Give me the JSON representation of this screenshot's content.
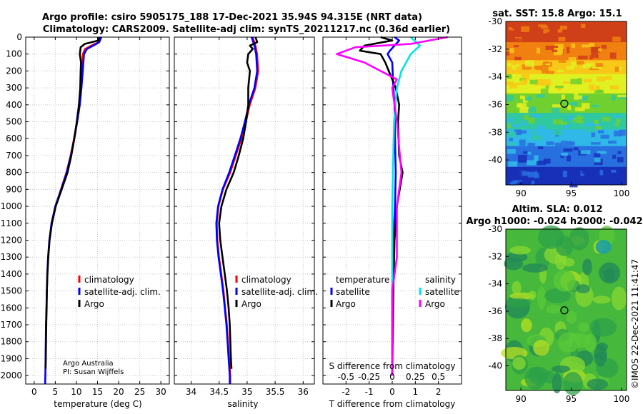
{
  "title": {
    "line1": "Argo profile: csiro 5905175_188 17-Dec-2021 35.94S 94.315E (NRT data)",
    "line2": "Climatology: CARS2009. Satellite-adj clim: synTS_20211217.nc (0.36d earlier)"
  },
  "colors": {
    "climatology": "#ff0000",
    "satellite": "#0000ff",
    "argo": "#000000",
    "s_satellite": "#00e5e5",
    "s_argo": "#ff00ff"
  },
  "depth_axis": {
    "ticks": [
      "0",
      "100",
      "200",
      "300",
      "400",
      "500",
      "600",
      "700",
      "800",
      "900",
      "1000",
      "1100",
      "1200",
      "1300",
      "1400",
      "1500",
      "1600",
      "1700",
      "1800",
      "1900",
      "2000"
    ]
  },
  "chart_data": [
    {
      "type": "line",
      "xlabel": "temperature (deg C)",
      "xlim": [
        -2,
        32
      ],
      "ylim": [
        0,
        2050
      ],
      "xticks": [
        "0",
        "5",
        "10",
        "15",
        "20",
        "25",
        "30"
      ],
      "legend": {
        "placement": "middle-right",
        "items": [
          "climatology",
          "satellite-adj. clim.",
          "Argo"
        ]
      },
      "annotation": {
        "line1": "Argo Australia",
        "line2": "PI: Susan Wijffels"
      },
      "series": [
        {
          "name": "climatology",
          "points": [
            [
              15.8,
              0
            ],
            [
              15.2,
              30
            ],
            [
              13.5,
              50
            ],
            [
              12,
              70
            ],
            [
              11.5,
              100
            ],
            [
              11.3,
              200
            ],
            [
              11,
              300
            ],
            [
              10.7,
              400
            ],
            [
              10.1,
              500
            ],
            [
              9.4,
              600
            ],
            [
              8.6,
              700
            ],
            [
              7.6,
              800
            ],
            [
              6.3,
              900
            ],
            [
              5,
              1000
            ],
            [
              4.1,
              1100
            ],
            [
              3.6,
              1200
            ],
            [
              3.3,
              1300
            ],
            [
              3.1,
              1400
            ],
            [
              3,
              1500
            ],
            [
              2.9,
              1600
            ],
            [
              2.8,
              1700
            ],
            [
              2.75,
              1800
            ],
            [
              2.7,
              1900
            ],
            [
              2.65,
              2000
            ],
            [
              2.6,
              2050
            ]
          ]
        },
        {
          "name": "satellite-adj. clim.",
          "points": [
            [
              15.9,
              0
            ],
            [
              15.4,
              30
            ],
            [
              14,
              50
            ],
            [
              12.5,
              70
            ],
            [
              11.8,
              100
            ],
            [
              11.5,
              200
            ],
            [
              11.2,
              300
            ],
            [
              10.8,
              400
            ],
            [
              10.2,
              500
            ],
            [
              9.5,
              600
            ],
            [
              8.7,
              700
            ],
            [
              7.7,
              800
            ],
            [
              6.4,
              900
            ],
            [
              5,
              1000
            ],
            [
              4.1,
              1100
            ],
            [
              3.6,
              1200
            ],
            [
              3.3,
              1300
            ],
            [
              3.1,
              1400
            ],
            [
              3,
              1500
            ],
            [
              2.9,
              1600
            ],
            [
              2.8,
              1700
            ],
            [
              2.75,
              1800
            ],
            [
              2.7,
              1900
            ],
            [
              2.65,
              2000
            ],
            [
              2.6,
              2050
            ]
          ]
        },
        {
          "name": "Argo",
          "points": [
            [
              15.4,
              0
            ],
            [
              15.2,
              20
            ],
            [
              12,
              40
            ],
            [
              11,
              60
            ],
            [
              10.8,
              100
            ],
            [
              11.1,
              150
            ],
            [
              11,
              200
            ],
            [
              10.9,
              300
            ],
            [
              10.6,
              400
            ],
            [
              10.1,
              500
            ],
            [
              9.5,
              600
            ],
            [
              8.8,
              700
            ],
            [
              7.9,
              800
            ],
            [
              6.5,
              900
            ],
            [
              5.1,
              1000
            ],
            [
              4.2,
              1100
            ],
            [
              3.65,
              1200
            ],
            [
              3.35,
              1300
            ],
            [
              3.15,
              1400
            ],
            [
              3,
              1500
            ],
            [
              2.95,
              1600
            ],
            [
              2.85,
              1700
            ],
            [
              2.8,
              1800
            ],
            [
              2.75,
              1900
            ],
            [
              2.7,
              1960
            ]
          ]
        }
      ]
    },
    {
      "type": "line",
      "xlabel": "salinity",
      "xlim": [
        33.7,
        36.2
      ],
      "ylim": [
        0,
        2050
      ],
      "xticks": [
        "34",
        "34.5",
        "35",
        "35.5",
        "36"
      ],
      "legend": {
        "placement": "middle-right",
        "items": [
          "climatology",
          "satellite-adj. clim.",
          "Argo"
        ]
      },
      "series": [
        {
          "name": "climatology",
          "points": [
            [
              35.1,
              0
            ],
            [
              35.15,
              50
            ],
            [
              35.18,
              100
            ],
            [
              35.2,
              200
            ],
            [
              35.15,
              300
            ],
            [
              35.05,
              400
            ],
            [
              34.98,
              500
            ],
            [
              34.9,
              600
            ],
            [
              34.8,
              700
            ],
            [
              34.7,
              800
            ],
            [
              34.57,
              900
            ],
            [
              34.49,
              1000
            ],
            [
              34.46,
              1100
            ],
            [
              34.47,
              1200
            ],
            [
              34.5,
              1300
            ],
            [
              34.54,
              1400
            ],
            [
              34.58,
              1500
            ],
            [
              34.61,
              1600
            ],
            [
              34.64,
              1700
            ],
            [
              34.66,
              1800
            ],
            [
              34.68,
              1900
            ],
            [
              34.7,
              2000
            ],
            [
              34.7,
              2050
            ]
          ]
        },
        {
          "name": "satellite-adj. clim.",
          "points": [
            [
              35.08,
              0
            ],
            [
              35.13,
              50
            ],
            [
              35.16,
              100
            ],
            [
              35.18,
              200
            ],
            [
              35.13,
              300
            ],
            [
              35.03,
              400
            ],
            [
              34.96,
              500
            ],
            [
              34.88,
              600
            ],
            [
              34.78,
              700
            ],
            [
              34.68,
              800
            ],
            [
              34.56,
              900
            ],
            [
              34.48,
              1000
            ],
            [
              34.45,
              1100
            ],
            [
              34.46,
              1200
            ],
            [
              34.49,
              1300
            ],
            [
              34.53,
              1400
            ],
            [
              34.57,
              1500
            ],
            [
              34.6,
              1600
            ],
            [
              34.63,
              1700
            ],
            [
              34.65,
              1800
            ],
            [
              34.67,
              1900
            ],
            [
              34.69,
              2000
            ],
            [
              34.69,
              2050
            ]
          ]
        },
        {
          "name": "Argo",
          "points": [
            [
              35.15,
              0
            ],
            [
              35.18,
              30
            ],
            [
              35.05,
              50
            ],
            [
              35.1,
              70
            ],
            [
              35.02,
              100
            ],
            [
              35,
              150
            ],
            [
              35.05,
              200
            ],
            [
              35.02,
              300
            ],
            [
              35.02,
              400
            ],
            [
              34.98,
              500
            ],
            [
              34.93,
              600
            ],
            [
              34.85,
              700
            ],
            [
              34.76,
              800
            ],
            [
              34.63,
              900
            ],
            [
              34.54,
              1000
            ],
            [
              34.5,
              1100
            ],
            [
              34.52,
              1200
            ],
            [
              34.56,
              1300
            ],
            [
              34.6,
              1400
            ],
            [
              34.64,
              1500
            ],
            [
              34.67,
              1600
            ],
            [
              34.69,
              1700
            ],
            [
              34.7,
              1800
            ],
            [
              34.71,
              1900
            ],
            [
              34.72,
              1960
            ]
          ]
        }
      ]
    },
    {
      "type": "line",
      "xlabel": "T difference from climatology",
      "xlabel_top": "S difference from climatology",
      "xlim": [
        -3,
        3
      ],
      "ylim": [
        0,
        2050
      ],
      "xticks": [
        "-2",
        "-1",
        "0",
        "1",
        "2"
      ],
      "xticks_top": [
        "-0.5",
        "-0.25",
        "0",
        "0.25",
        "0.5"
      ],
      "legend_left": {
        "title": "temperature",
        "items": [
          "satellite",
          "Argo"
        ]
      },
      "legend_right": {
        "title": "salinity",
        "items": [
          "satellite",
          "Argo"
        ]
      },
      "series": [
        {
          "name": "T satellite",
          "points": [
            [
              0.1,
              0
            ],
            [
              0.3,
              20
            ],
            [
              -0.1,
              80
            ],
            [
              -0.2,
              100
            ],
            [
              0,
              150
            ],
            [
              0.05,
              300
            ],
            [
              0.1,
              400
            ],
            [
              0.12,
              600
            ],
            [
              0.15,
              800
            ],
            [
              0.12,
              1000
            ],
            [
              0.05,
              1200
            ],
            [
              0,
              1500
            ],
            [
              0,
              2000
            ]
          ]
        },
        {
          "name": "T Argo",
          "points": [
            [
              -0.5,
              0
            ],
            [
              0,
              20
            ],
            [
              -1.2,
              50
            ],
            [
              -1.4,
              80
            ],
            [
              -0.5,
              100
            ],
            [
              -0.3,
              150
            ],
            [
              0,
              250
            ],
            [
              0.15,
              300
            ],
            [
              0.3,
              400
            ],
            [
              0.25,
              500
            ],
            [
              0.3,
              700
            ],
            [
              0.45,
              800
            ],
            [
              0.2,
              1000
            ],
            [
              0.1,
              1200
            ],
            [
              0.05,
              1500
            ],
            [
              0,
              2000
            ]
          ]
        },
        {
          "name": "S satellite",
          "points": [
            [
              0.2,
              0
            ],
            [
              0.3,
              50
            ],
            [
              0.2,
              100
            ],
            [
              0.1,
              200
            ],
            [
              0.05,
              300
            ],
            [
              0.02,
              500
            ],
            [
              0,
              1000
            ],
            [
              0,
              1500
            ],
            [
              0,
              2000
            ]
          ]
        },
        {
          "name": "S Argo",
          "points": [
            [
              0.6,
              0
            ],
            [
              0.2,
              40
            ],
            [
              -0.4,
              60
            ],
            [
              -0.6,
              100
            ],
            [
              -0.3,
              150
            ],
            [
              0.05,
              250
            ],
            [
              0,
              300
            ],
            [
              0.05,
              500
            ],
            [
              0.1,
              800
            ],
            [
              0.05,
              1000
            ],
            [
              0.05,
              1300
            ],
            [
              0,
              1500
            ],
            [
              0,
              2000
            ]
          ]
        }
      ]
    },
    {
      "type": "heatmap",
      "title": "sat. SST: 15.8 Argo: 15.1",
      "xlim": [
        88.5,
        100.5
      ],
      "ylim": [
        -41.8,
        -30
      ],
      "xticks": [
        "90",
        "95",
        "100"
      ],
      "yticks": [
        "-30",
        "-32",
        "-34",
        "-36",
        "-38",
        "-40"
      ],
      "marker": {
        "lon": 94.315,
        "lat": -35.94
      },
      "bands": [
        {
          "lat_from": -30,
          "lat_to": -31.5,
          "color": "#d04018"
        },
        {
          "lat_from": -31.5,
          "lat_to": -32.8,
          "color": "#f08010"
        },
        {
          "lat_from": -32.8,
          "lat_to": -33.8,
          "color": "#f8c818"
        },
        {
          "lat_from": -33.8,
          "lat_to": -35.2,
          "color": "#e0f020"
        },
        {
          "lat_from": -35.2,
          "lat_to": -36.6,
          "color": "#70d030"
        },
        {
          "lat_from": -36.6,
          "lat_to": -37.8,
          "color": "#30c8a0"
        },
        {
          "lat_from": -37.8,
          "lat_to": -39,
          "color": "#30b8e8"
        },
        {
          "lat_from": -39,
          "lat_to": -40.5,
          "color": "#2870e0"
        },
        {
          "lat_from": -40.5,
          "lat_to": -41.8,
          "color": "#1830b8"
        }
      ]
    },
    {
      "type": "heatmap",
      "title_line1": "Altim. SLA: 0.012",
      "title_line2": "Argo h1000: -0.024 h2000: -0.042",
      "xlim": [
        88.5,
        100.5
      ],
      "ylim": [
        -41.8,
        -30
      ],
      "xticks": [
        "90",
        "95",
        "100"
      ],
      "yticks": [
        "-30",
        "-32",
        "-34",
        "-36",
        "-38",
        "-40"
      ],
      "marker": {
        "lon": 94.315,
        "lat": -35.94
      }
    }
  ],
  "credit": "©IMOS 22-Dec-2021 11:41:47"
}
